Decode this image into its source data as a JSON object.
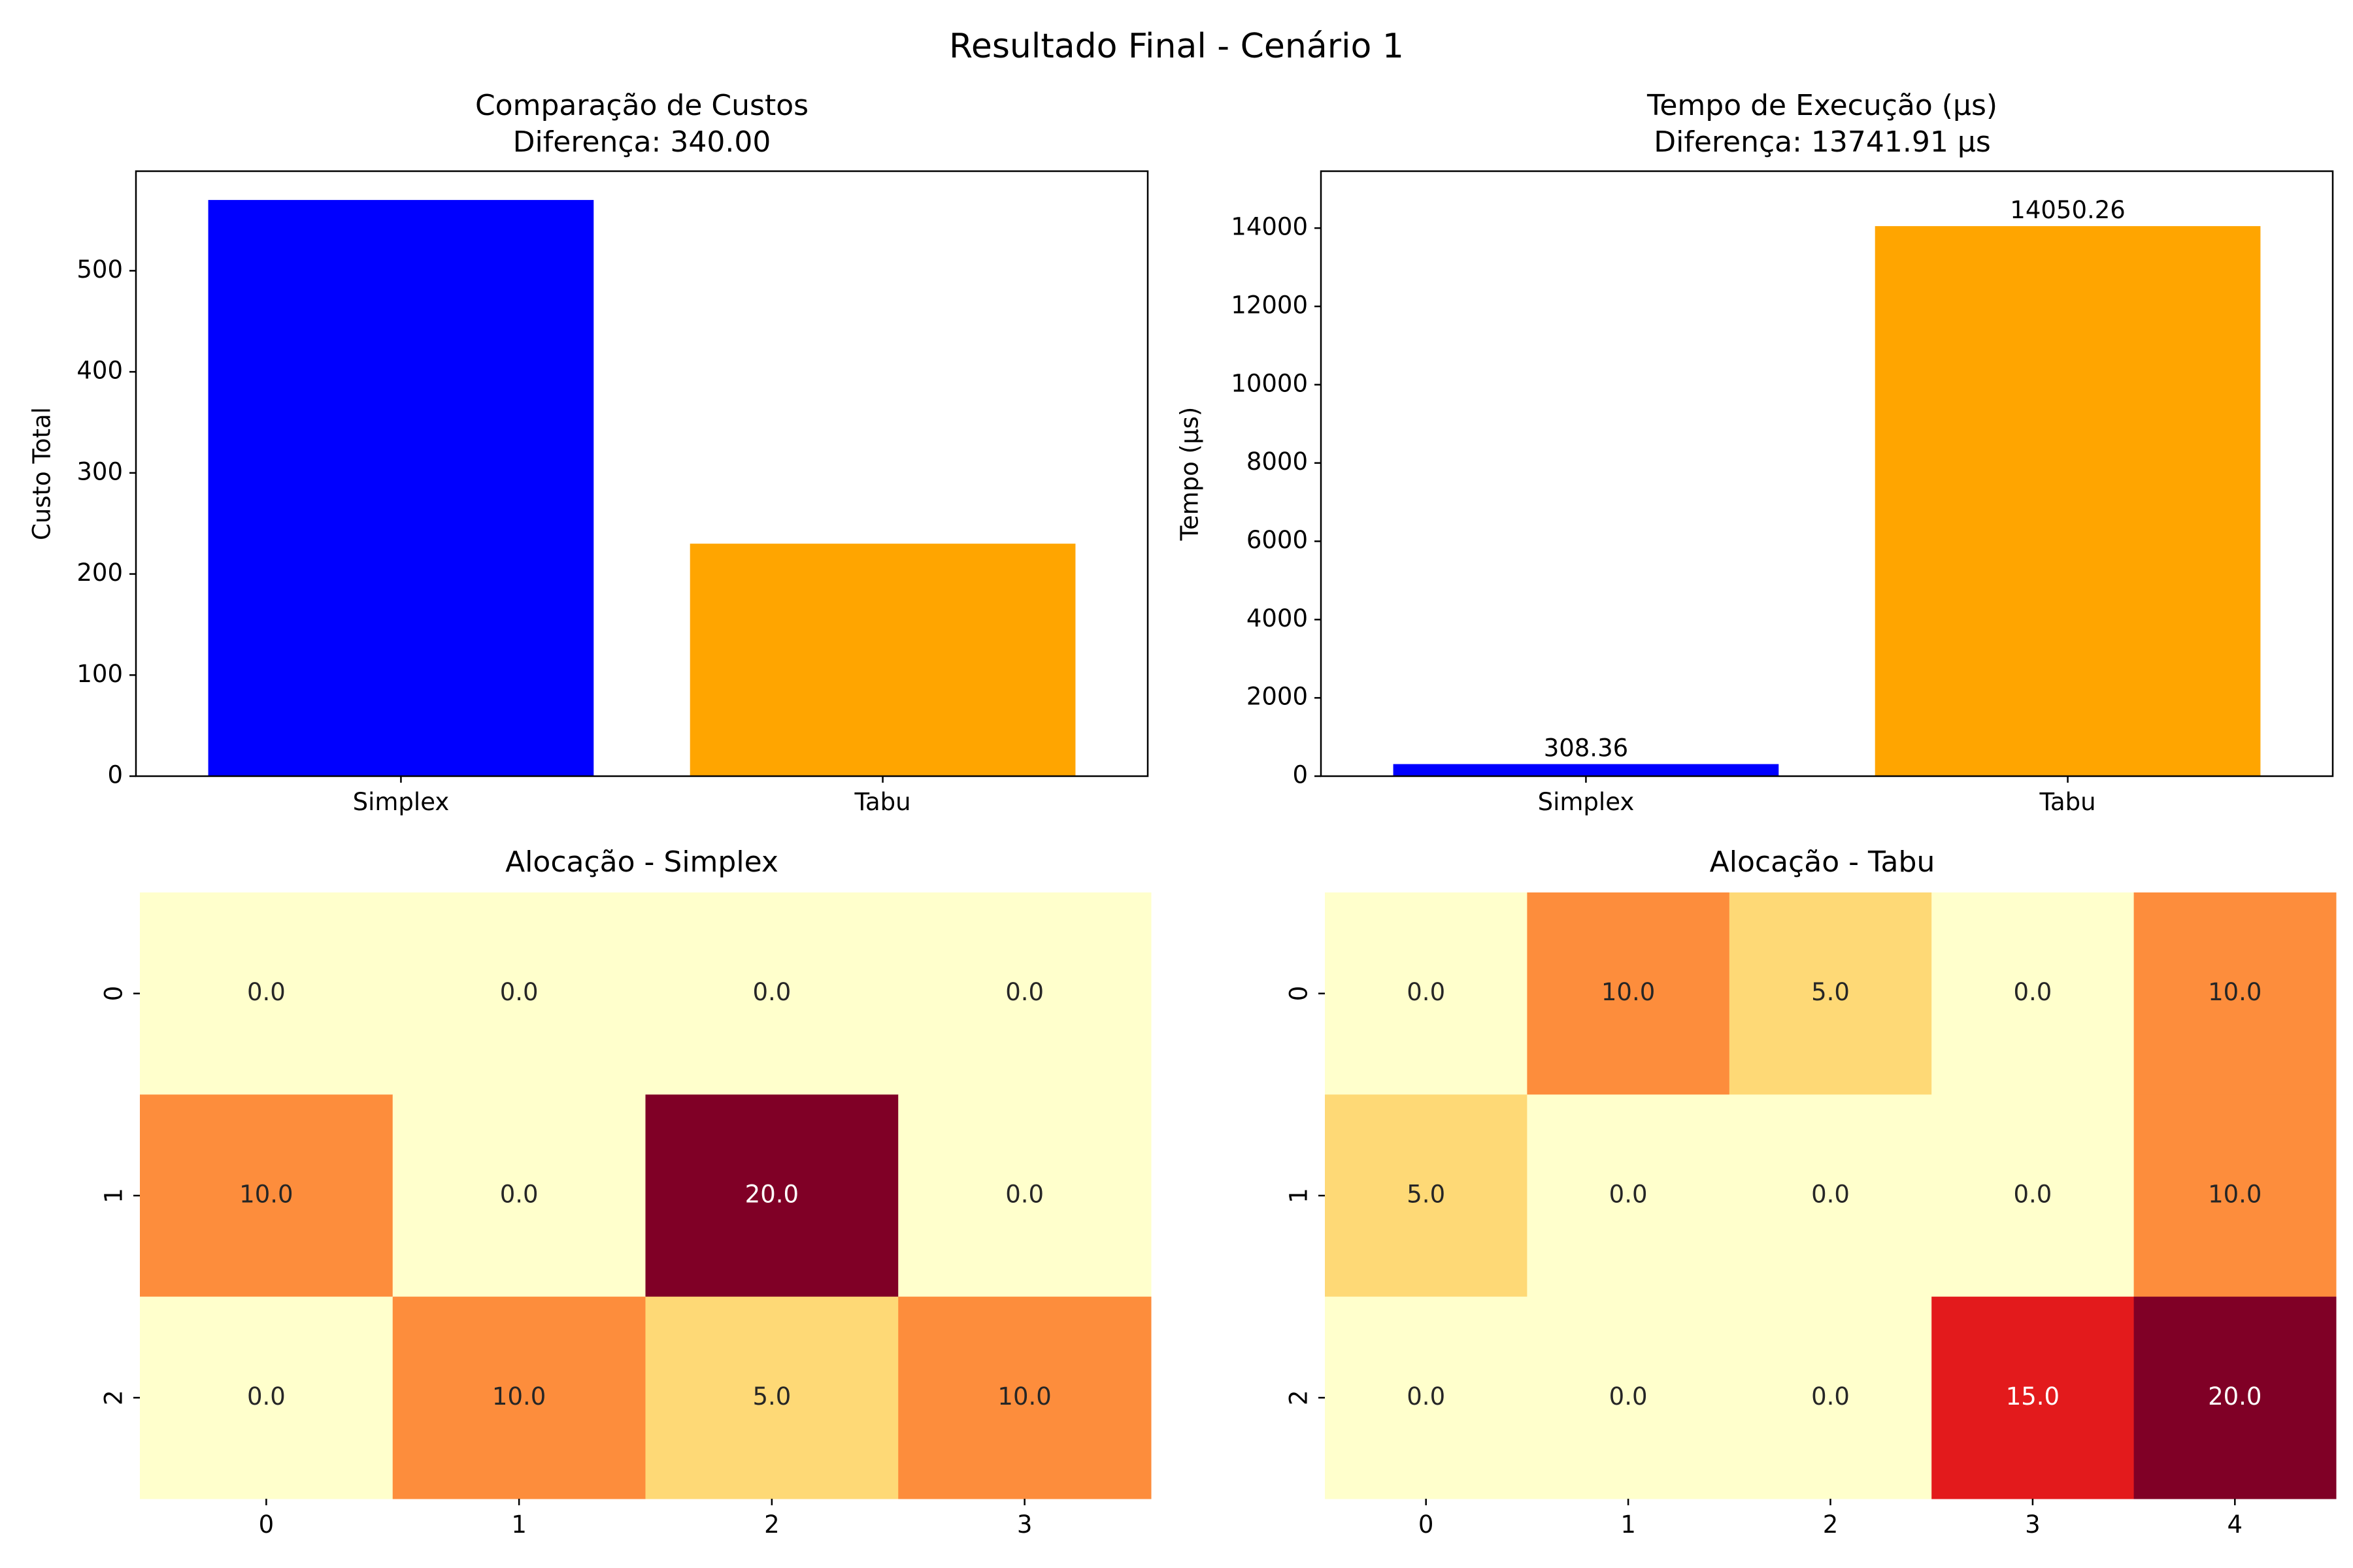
{
  "figure": {
    "suptitle": "Resultado Final - Cenário 1"
  },
  "chart_data": [
    {
      "type": "bar",
      "title": "Comparação de Custos",
      "subtitle": "Diferença: 340.00",
      "xlabel": "",
      "ylabel": "Custo Total",
      "categories": [
        "Simplex",
        "Tabu"
      ],
      "values": [
        570,
        230
      ],
      "colors": [
        "#0000ff",
        "#ffa500"
      ],
      "ylim": [
        0,
        598.5
      ],
      "yticks": [
        0,
        100,
        200,
        300,
        400,
        500
      ],
      "ytick_labels": [
        "0",
        "100",
        "200",
        "300",
        "400",
        "500"
      ],
      "data_labels": [],
      "grid": false,
      "legend": "none"
    },
    {
      "type": "bar",
      "title": "Tempo de Execução (µs)",
      "subtitle": "Diferença: 13741.91 µs",
      "xlabel": "",
      "ylabel": "Tempo (µs)",
      "categories": [
        "Simplex",
        "Tabu"
      ],
      "values": [
        308.36,
        14050.26
      ],
      "colors": [
        "#0000ff",
        "#ffa500"
      ],
      "ylim": [
        0,
        15454
      ],
      "yticks": [
        0,
        2000,
        4000,
        6000,
        8000,
        10000,
        12000,
        14000
      ],
      "ytick_labels": [
        "0",
        "2000",
        "4000",
        "6000",
        "8000",
        "10000",
        "12000",
        "14000"
      ],
      "data_labels": [
        "308.36",
        "14050.26"
      ],
      "grid": false,
      "legend": "none"
    },
    {
      "type": "heatmap",
      "title": "Alocação - Simplex",
      "xlabel": "",
      "ylabel": "",
      "x_categories": [
        "0",
        "1",
        "2",
        "3"
      ],
      "y_categories": [
        "0",
        "1",
        "2"
      ],
      "values": [
        [
          0.0,
          0.0,
          0.0,
          0.0
        ],
        [
          10.0,
          0.0,
          20.0,
          0.0
        ],
        [
          0.0,
          10.0,
          5.0,
          10.0
        ]
      ],
      "cell_labels": [
        [
          "0.0",
          "0.0",
          "0.0",
          "0.0"
        ],
        [
          "10.0",
          "0.0",
          "20.0",
          "0.0"
        ],
        [
          "0.0",
          "10.0",
          "5.0",
          "10.0"
        ]
      ],
      "colormap": "YlOrRd",
      "value_range": [
        0,
        20
      ],
      "colorbar": false
    },
    {
      "type": "heatmap",
      "title": "Alocação - Tabu",
      "xlabel": "",
      "ylabel": "",
      "x_categories": [
        "0",
        "1",
        "2",
        "3",
        "4"
      ],
      "y_categories": [
        "0",
        "1",
        "2"
      ],
      "values": [
        [
          0.0,
          10.0,
          5.0,
          0.0,
          10.0
        ],
        [
          5.0,
          0.0,
          0.0,
          0.0,
          10.0
        ],
        [
          0.0,
          0.0,
          0.0,
          15.0,
          20.0
        ]
      ],
      "cell_labels": [
        [
          "0.0",
          "10.0",
          "5.0",
          "0.0",
          "10.0"
        ],
        [
          "5.0",
          "0.0",
          "0.0",
          "0.0",
          "10.0"
        ],
        [
          "0.0",
          "0.0",
          "0.0",
          "15.0",
          "20.0"
        ]
      ],
      "colormap": "YlOrRd",
      "value_range": [
        0,
        20
      ],
      "colorbar": false
    }
  ]
}
